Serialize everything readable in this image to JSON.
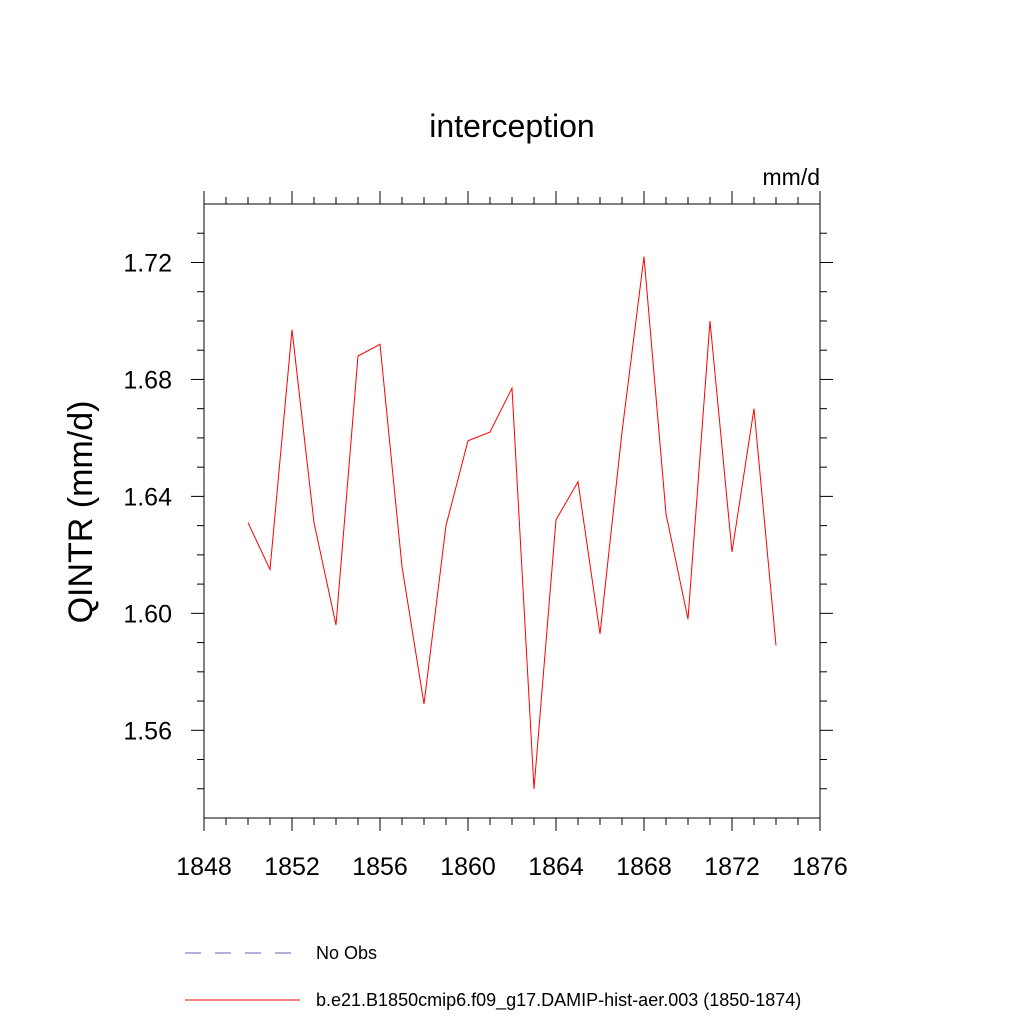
{
  "chart_data": {
    "type": "line",
    "title": "interception",
    "units": "mm/d",
    "ylabel": "QINTR  (mm/d)",
    "xlabel": "",
    "xlim": [
      1848,
      1876
    ],
    "ylim": [
      1.53,
      1.74
    ],
    "xticks": [
      1848,
      1852,
      1856,
      1860,
      1864,
      1868,
      1872,
      1876
    ],
    "xtick_labels": [
      "1848",
      "1852",
      "1856",
      "1860",
      "1864",
      "1868",
      "1872",
      "1876"
    ],
    "yticks": [
      1.56,
      1.6,
      1.64,
      1.68,
      1.72
    ],
    "ytick_labels": [
      "1.56",
      "1.60",
      "1.64",
      "1.68",
      "1.72"
    ],
    "grid": false,
    "legend_position": "bottom",
    "series": [
      {
        "name": "b.e21.B1850cmip6.f09_g17.DAMIP-hist-aer.003 (1850-1874)",
        "color": "#ff0000",
        "dash": "solid",
        "x": [
          1850,
          1851,
          1852,
          1853,
          1854,
          1855,
          1856,
          1857,
          1858,
          1859,
          1860,
          1861,
          1862,
          1863,
          1864,
          1865,
          1866,
          1867,
          1868,
          1869,
          1870,
          1871,
          1872,
          1873,
          1874
        ],
        "values": [
          1.631,
          1.615,
          1.697,
          1.631,
          1.596,
          1.688,
          1.692,
          1.616,
          1.569,
          1.63,
          1.659,
          1.662,
          1.677,
          1.54,
          1.632,
          1.645,
          1.593,
          1.662,
          1.722,
          1.634,
          1.598,
          1.7,
          1.621,
          1.67,
          1.589
        ]
      }
    ],
    "legend": [
      {
        "label": "No Obs",
        "color": "#6b5fb5",
        "dash": "dashed"
      },
      {
        "label": "b.e21.B1850cmip6.f09_g17.DAMIP-hist-aer.003 (1850-1874)",
        "color": "#ff0000",
        "dash": "solid"
      }
    ]
  }
}
